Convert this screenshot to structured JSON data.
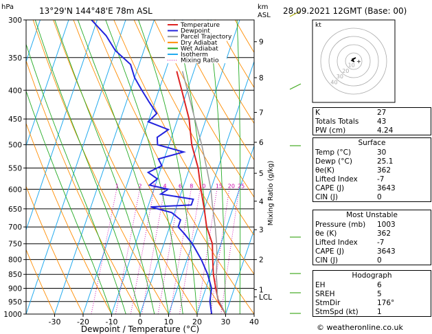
{
  "header": {
    "location": "13°29'N  144°48'E  78m  ASL",
    "datetime": "28.09.2021  12GMT  (Base: 00)",
    "hpa_label": "hPa",
    "km_label_1": "km",
    "km_label_2": "ASL"
  },
  "chart_data": {
    "type": "line",
    "title": "",
    "xlabel": "Dewpoint / Temperature (°C)",
    "ylabel_left": "hPa",
    "ylabel_right": "Mixing Ratio (g/kg)",
    "x_ticks": [
      -30,
      -20,
      -10,
      0,
      10,
      20,
      30,
      40
    ],
    "xlim": [
      -40,
      40
    ],
    "ylim": [
      1000,
      300
    ],
    "pressure_ticks": [
      300,
      350,
      400,
      450,
      500,
      550,
      600,
      650,
      700,
      750,
      800,
      850,
      900,
      950,
      1000
    ],
    "km_ticks": [
      {
        "label": "9",
        "p": 328
      },
      {
        "label": "8",
        "p": 380
      },
      {
        "label": "7",
        "p": 438
      },
      {
        "label": "6",
        "p": 495
      },
      {
        "label": "5",
        "p": 562
      },
      {
        "label": "4",
        "p": 630
      },
      {
        "label": "3",
        "p": 708
      },
      {
        "label": "2",
        "p": 800
      },
      {
        "label": "1",
        "p": 905
      },
      {
        "label": "LCL",
        "p": 932
      }
    ],
    "mixing_ratio_labels": [
      "1",
      "2",
      "3",
      "4",
      "6",
      "8",
      "10",
      "15",
      "20",
      "25"
    ],
    "mixing_ratio_values": [
      1,
      2,
      3,
      4,
      6,
      8,
      10,
      15,
      20,
      25
    ],
    "legend": [
      {
        "name": "Temperature",
        "color": "#dd2222"
      },
      {
        "name": "Dewpoint",
        "color": "#2222dd"
      },
      {
        "name": "Parcel Trajectory",
        "color": "#999999"
      },
      {
        "name": "Dry Adiabat",
        "color": "#ff8c00"
      },
      {
        "name": "Wet Adiabat",
        "color": "#22aa22"
      },
      {
        "name": "Isotherm",
        "color": "#22aaee"
      },
      {
        "name": "Mixing Ratio",
        "color": "#cc00aa"
      }
    ],
    "series": [
      {
        "name": "Temperature",
        "color": "#dd2222",
        "points": [
          [
            1000,
            30
          ],
          [
            950,
            26
          ],
          [
            900,
            23.5
          ],
          [
            850,
            21
          ],
          [
            800,
            19
          ],
          [
            750,
            17
          ],
          [
            700,
            13
          ],
          [
            650,
            10
          ],
          [
            600,
            6.5
          ],
          [
            550,
            3
          ],
          [
            500,
            -2
          ],
          [
            450,
            -6
          ],
          [
            400,
            -12
          ],
          [
            370,
            -16
          ]
        ]
      },
      {
        "name": "Dewpoint",
        "color": "#2222dd",
        "points": [
          [
            1000,
            25.1
          ],
          [
            950,
            23
          ],
          [
            900,
            22
          ],
          [
            850,
            19
          ],
          [
            800,
            15
          ],
          [
            750,
            10
          ],
          [
            720,
            6
          ],
          [
            700,
            3
          ],
          [
            680,
            3
          ],
          [
            660,
            -1
          ],
          [
            645,
            -9
          ],
          [
            640,
            5
          ],
          [
            625,
            5
          ],
          [
            612,
            -7
          ],
          [
            600,
            -5
          ],
          [
            590,
            -12
          ],
          [
            575,
            -10
          ],
          [
            560,
            -14
          ],
          [
            545,
            -10
          ],
          [
            530,
            -12
          ],
          [
            515,
            -4
          ],
          [
            500,
            -14
          ],
          [
            485,
            -15
          ],
          [
            470,
            -12
          ],
          [
            455,
            -20
          ],
          [
            440,
            -18
          ],
          [
            420,
            -22
          ],
          [
            400,
            -26
          ],
          [
            380,
            -30
          ],
          [
            360,
            -33
          ],
          [
            340,
            -40
          ],
          [
            320,
            -45
          ],
          [
            300,
            -52
          ]
        ]
      },
      {
        "name": "Parcel Trajectory",
        "color": "#999999",
        "points": [
          [
            1000,
            30
          ],
          [
            932,
            25
          ],
          [
            900,
            24
          ],
          [
            850,
            22
          ],
          [
            800,
            20.5
          ],
          [
            750,
            18.5
          ],
          [
            700,
            16
          ],
          [
            650,
            13
          ],
          [
            600,
            10
          ],
          [
            550,
            6
          ],
          [
            500,
            1.5
          ],
          [
            450,
            -4
          ],
          [
            400,
            -10
          ],
          [
            370,
            -14
          ]
        ]
      }
    ],
    "hodograph": {
      "label": "kt",
      "rings": [
        "40",
        "30",
        "20",
        "10"
      ]
    }
  },
  "indices": {
    "rows": [
      {
        "label": "K",
        "value": "27"
      },
      {
        "label": "Totals Totals",
        "value": "43"
      },
      {
        "label": "PW (cm)",
        "value": "4.24"
      }
    ]
  },
  "surface": {
    "title": "Surface",
    "rows": [
      {
        "label": "Temp (°C)",
        "value": "30"
      },
      {
        "label": "Dewp (°C)",
        "value": "25.1"
      },
      {
        "label": "θe(K)",
        "value": "362"
      },
      {
        "label": "Lifted Index",
        "value": "-7"
      },
      {
        "label": "CAPE (J)",
        "value": "3643"
      },
      {
        "label": "CIN (J)",
        "value": "0"
      }
    ]
  },
  "most_unstable": {
    "title": "Most Unstable",
    "rows": [
      {
        "label": "Pressure (mb)",
        "value": "1003"
      },
      {
        "label": "θe (K)",
        "value": "362"
      },
      {
        "label": "Lifted Index",
        "value": "-7"
      },
      {
        "label": "CAPE (J)",
        "value": "3643"
      },
      {
        "label": "CIN (J)",
        "value": "0"
      }
    ]
  },
  "hodograph_table": {
    "title": "Hodograph",
    "rows": [
      {
        "label": "EH",
        "value": "6"
      },
      {
        "label": "SREH",
        "value": "5"
      },
      {
        "label": "StmDir",
        "value": "176°"
      },
      {
        "label": "StmSpd (kt)",
        "value": "1"
      }
    ]
  },
  "footer": {
    "copyright_prefix": "© ",
    "copyright_site": "weatheronline.co.uk"
  }
}
